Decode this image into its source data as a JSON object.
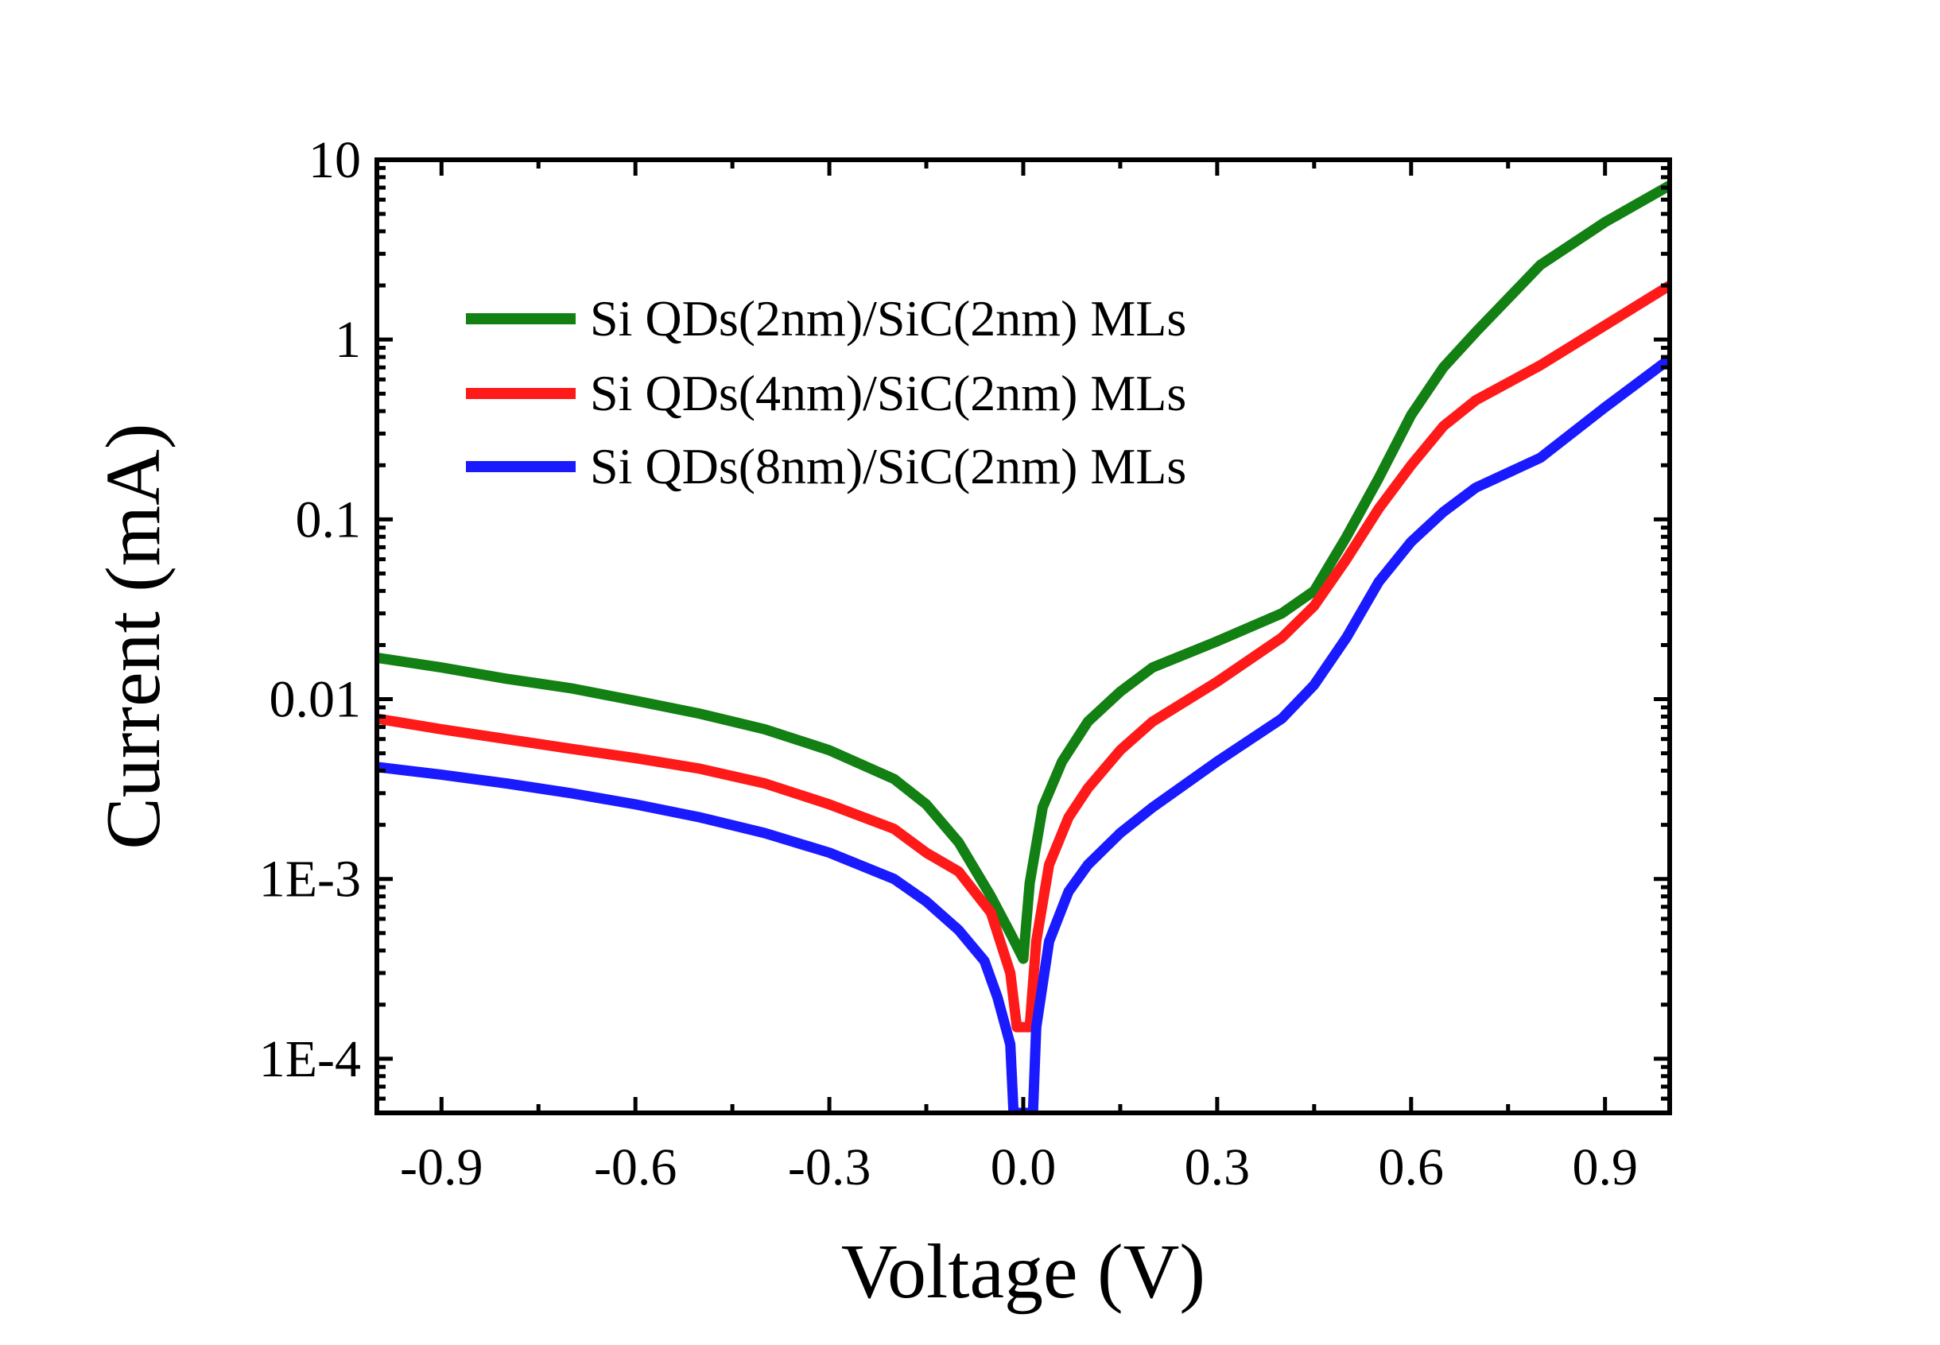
{
  "chart_data": {
    "type": "line",
    "title": "",
    "xlabel": "Voltage (V)",
    "ylabel": "Current (mA)",
    "xlim": [
      -1.0,
      1.0
    ],
    "ylim": [
      5e-05,
      10
    ],
    "yscale": "log",
    "x_ticks": [
      -0.9,
      -0.6,
      -0.3,
      0.0,
      0.3,
      0.6,
      0.9
    ],
    "x_tick_labels": [
      "-0.9",
      "-0.6",
      "-0.3",
      "0.0",
      "0.3",
      "0.6",
      "0.9"
    ],
    "y_ticks": [
      0.0001,
      0.001,
      0.01,
      0.1,
      1,
      10
    ],
    "y_tick_labels": [
      "1E-4",
      "1E-3",
      "0.01",
      "0.1",
      "1",
      "10"
    ],
    "grid": false,
    "legend_position": "top-left",
    "series": [
      {
        "name": "Si QDs(2nm)/SiC(2nm) MLs",
        "color": "#128012",
        "x": [
          -1.0,
          -0.9,
          -0.8,
          -0.7,
          -0.6,
          -0.5,
          -0.4,
          -0.3,
          -0.2,
          -0.15,
          -0.1,
          -0.05,
          -0.02,
          0.0,
          0.01,
          0.03,
          0.06,
          0.1,
          0.15,
          0.2,
          0.3,
          0.4,
          0.45,
          0.5,
          0.55,
          0.6,
          0.65,
          0.7,
          0.8,
          0.9,
          1.0
        ],
        "y": [
          0.017,
          0.015,
          0.013,
          0.0115,
          0.0098,
          0.0083,
          0.0068,
          0.0052,
          0.0036,
          0.0026,
          0.0016,
          0.0008,
          0.0005,
          0.00036,
          0.00095,
          0.0025,
          0.0045,
          0.0075,
          0.011,
          0.015,
          0.021,
          0.03,
          0.04,
          0.08,
          0.17,
          0.38,
          0.7,
          1.1,
          2.6,
          4.5,
          7.2
        ]
      },
      {
        "name": "Si QDs(4nm)/SiC(2nm) MLs",
        "color": "#ff1a1a",
        "x": [
          -1.0,
          -0.9,
          -0.8,
          -0.7,
          -0.6,
          -0.5,
          -0.4,
          -0.3,
          -0.2,
          -0.15,
          -0.1,
          -0.05,
          -0.02,
          -0.01,
          0.0,
          0.01,
          0.02,
          0.04,
          0.07,
          0.1,
          0.15,
          0.2,
          0.3,
          0.4,
          0.45,
          0.5,
          0.55,
          0.6,
          0.65,
          0.7,
          0.8,
          0.9,
          1.0
        ],
        "y": [
          0.0078,
          0.0068,
          0.006,
          0.0053,
          0.0047,
          0.0041,
          0.0034,
          0.0026,
          0.0019,
          0.0014,
          0.0011,
          0.00065,
          0.0003,
          0.00015,
          0.00015,
          0.00015,
          0.00045,
          0.0012,
          0.0022,
          0.0032,
          0.0052,
          0.0075,
          0.0125,
          0.022,
          0.033,
          0.06,
          0.115,
          0.2,
          0.33,
          0.46,
          0.72,
          1.2,
          2.0
        ]
      },
      {
        "name": "Si QDs(8nm)/SiC(2nm) MLs",
        "color": "#1a1aff",
        "x": [
          -1.0,
          -0.9,
          -0.8,
          -0.7,
          -0.6,
          -0.5,
          -0.4,
          -0.3,
          -0.2,
          -0.15,
          -0.1,
          -0.06,
          -0.04,
          -0.02,
          -0.015,
          0.015,
          0.02,
          0.04,
          0.07,
          0.1,
          0.15,
          0.2,
          0.3,
          0.4,
          0.45,
          0.5,
          0.55,
          0.6,
          0.65,
          0.7,
          0.8,
          0.9,
          1.0
        ],
        "y": [
          0.0042,
          0.0038,
          0.0034,
          0.003,
          0.0026,
          0.0022,
          0.0018,
          0.0014,
          0.001,
          0.00075,
          0.00052,
          0.00035,
          0.00022,
          0.00012,
          5e-05,
          5e-05,
          0.00015,
          0.00045,
          0.00085,
          0.0012,
          0.0018,
          0.0025,
          0.0045,
          0.0078,
          0.012,
          0.022,
          0.045,
          0.075,
          0.11,
          0.15,
          0.22,
          0.42,
          0.78
        ]
      }
    ]
  }
}
